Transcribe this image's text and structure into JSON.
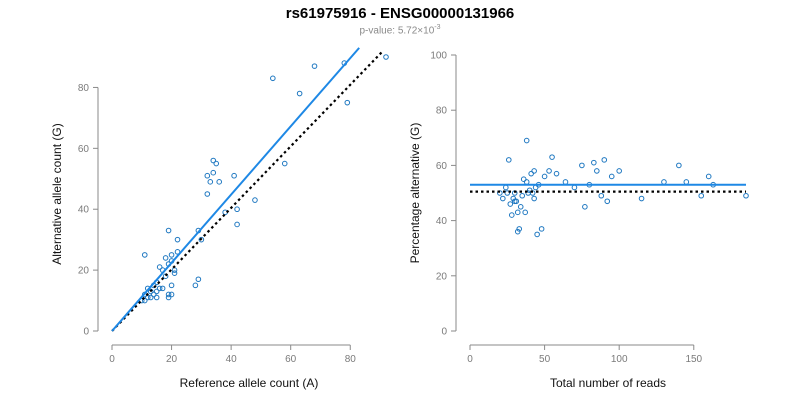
{
  "title": "rs61975916 - ENSG00000131966",
  "subtitle": {
    "prefix": "p-value: 5.72×10",
    "exponent": "-3"
  },
  "colors": {
    "point": "#1f78c1",
    "fit_line": "#1e88e5",
    "reference_line": "#000000",
    "axis": "#8a8a8a"
  },
  "chart_data": [
    {
      "type": "scatter",
      "id": "left",
      "title": "",
      "xlabel": "Reference allele count (A)",
      "ylabel": "Alternative allele count (G)",
      "xlim": [
        0,
        92
      ],
      "ylim": [
        0,
        90
      ],
      "xticks": [
        0,
        20,
        40,
        60,
        80
      ],
      "yticks": [
        0,
        20,
        40,
        60,
        80
      ],
      "fit_line": {
        "x": [
          0,
          83
        ],
        "y": [
          0,
          93
        ]
      },
      "reference_line": {
        "x": [
          0,
          91
        ],
        "y": [
          0,
          92
        ]
      },
      "points": {
        "x": [
          10,
          11,
          11,
          12,
          12,
          13,
          13,
          14,
          14,
          15,
          15,
          15,
          16,
          16,
          17,
          17,
          18,
          18,
          19,
          19,
          19,
          20,
          20,
          20,
          20,
          21,
          21,
          22,
          22,
          11,
          19,
          28,
          29,
          29,
          32,
          33,
          34,
          35,
          34,
          38,
          41,
          42,
          42,
          48,
          54,
          58,
          63,
          68,
          78,
          79,
          92,
          36,
          30,
          32
        ],
        "y": [
          10,
          10,
          12,
          11,
          14,
          13,
          11,
          12,
          15,
          13,
          11,
          16,
          14,
          21,
          20,
          14,
          18,
          24,
          22,
          11,
          12,
          25,
          23,
          12,
          15,
          19,
          20,
          26,
          30,
          25,
          33,
          15,
          17,
          33,
          45,
          49,
          52,
          55,
          56,
          39,
          51,
          35,
          40,
          43,
          83,
          55,
          78,
          87,
          88,
          75,
          90,
          49,
          30,
          51
        ]
      }
    },
    {
      "type": "scatter",
      "id": "right",
      "title": "",
      "xlabel": "Total number of reads",
      "ylabel": "Percentage alternative (G)",
      "xlim": [
        0,
        185
      ],
      "ylim": [
        0,
        100
      ],
      "xticks": [
        0,
        50,
        100,
        150
      ],
      "yticks": [
        0,
        20,
        40,
        60,
        80,
        100
      ],
      "fit_line": {
        "x": [
          0,
          185
        ],
        "y": [
          53,
          53
        ]
      },
      "reference_line": {
        "x": [
          0,
          185
        ],
        "y": [
          50.5,
          50.5
        ]
      },
      "points": {
        "x": [
          20,
          22,
          24,
          25,
          26,
          27,
          28,
          29,
          30,
          31,
          32,
          33,
          34,
          35,
          36,
          37,
          38,
          39,
          40,
          41,
          42,
          43,
          44,
          45,
          46,
          48,
          50,
          53,
          55,
          58,
          64,
          70,
          75,
          77,
          80,
          83,
          85,
          88,
          90,
          92,
          95,
          100,
          115,
          130,
          140,
          145,
          155,
          160,
          163,
          185,
          38,
          30,
          32,
          43
        ],
        "y": [
          50,
          48,
          52,
          50,
          62,
          46,
          42,
          48,
          50,
          47,
          36,
          37,
          45,
          49,
          55,
          43,
          69,
          50,
          51,
          57,
          50,
          48,
          52,
          35,
          53,
          37,
          56,
          58,
          63,
          57,
          54,
          52,
          60,
          45,
          53,
          61,
          58,
          49,
          62,
          47,
          56,
          58,
          48,
          54,
          60,
          54,
          49,
          56,
          53,
          49,
          54,
          47,
          43,
          58
        ]
      }
    }
  ]
}
